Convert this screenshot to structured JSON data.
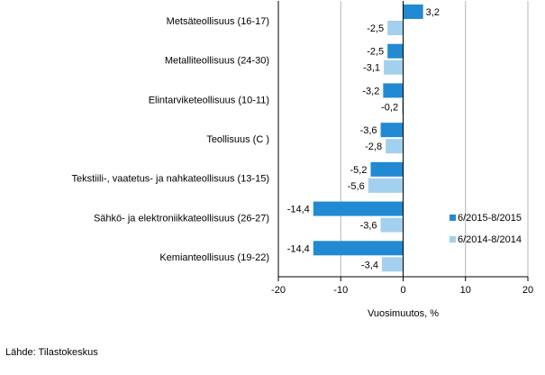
{
  "chart_data": {
    "type": "bar",
    "orientation": "horizontal",
    "categories": [
      "Metsäteollisuus (16-17)",
      "Metalliteollisuus (24-30)",
      "Elintarviketeollisuus (10-11)",
      "Teollisuus (C )",
      "Tekstiili-, vaatetus- ja nahkateollisuus (13-15)",
      "Sähkö- ja elektroniikkateollisuus (26-27)",
      "Kemianteollisuus (19-22)"
    ],
    "series": [
      {
        "name": "6/2015-8/2015",
        "color": "#228ad3",
        "values": [
          3.2,
          -2.5,
          -3.2,
          -3.6,
          -5.2,
          -14.4,
          -14.4
        ]
      },
      {
        "name": "6/2014-8/2014",
        "color": "#a3d0ef",
        "values": [
          -2.5,
          -3.1,
          -0.2,
          -2.8,
          -5.6,
          -3.6,
          -3.4
        ]
      }
    ],
    "xlabel": "Vuosimuutos, %",
    "xlim": [
      -20,
      20
    ],
    "xticks": [
      -20,
      -10,
      0,
      10,
      20
    ],
    "grid": "vertical",
    "legend": "right",
    "decimal_separator": ","
  },
  "source": "Lähde: Tilastokeskus"
}
